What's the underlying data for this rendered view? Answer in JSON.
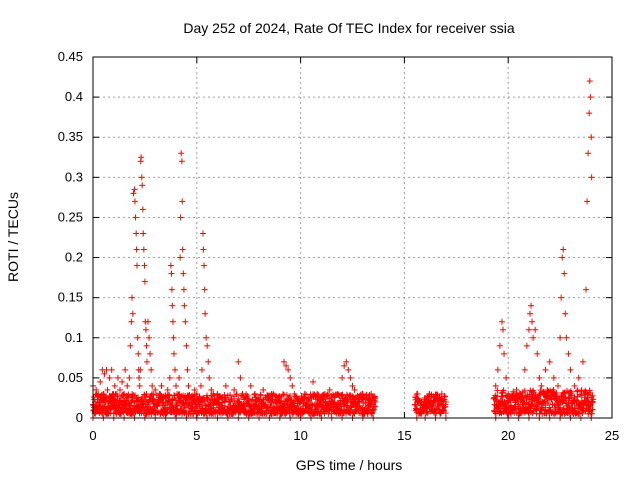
{
  "chart_data": {
    "type": "scatter",
    "title": "Day 252 of 2024, Rate Of TEC Index for receiver ssia",
    "xlabel": "GPS time / hours",
    "ylabel": "ROTI / TECUs",
    "xlim": [
      0,
      25
    ],
    "ylim": [
      0,
      0.45
    ],
    "x_ticks": [
      0,
      5,
      10,
      15,
      20,
      25
    ],
    "y_ticks": [
      0,
      0.05,
      0.1,
      0.15,
      0.2,
      0.25,
      0.3,
      0.35,
      0.4,
      0.45
    ],
    "x_tick_labels": [
      "0",
      "5",
      "10",
      "15",
      "20",
      "25"
    ],
    "y_tick_labels": [
      "0",
      "0.05",
      "0.1",
      "0.15",
      "0.2",
      "0.25",
      "0.3",
      "0.35",
      "0.4",
      "0.45"
    ],
    "grid": true,
    "legend": "none",
    "marker": "plus",
    "color": "#ff0000",
    "series": [
      {
        "points": [
          [
            0.0,
            0.04
          ],
          [
            0.05,
            0.01
          ],
          [
            0.1,
            0.02
          ],
          [
            0.15,
            0.035
          ],
          [
            0.2,
            0.015
          ],
          [
            0.25,
            0.03
          ],
          [
            0.3,
            0.02
          ],
          [
            0.35,
            0.045
          ],
          [
            0.4,
            0.025
          ],
          [
            0.45,
            0.06
          ],
          [
            0.5,
            0.03
          ],
          [
            0.55,
            0.055
          ],
          [
            0.6,
            0.02
          ],
          [
            0.65,
            0.06
          ],
          [
            0.7,
            0.035
          ],
          [
            0.75,
            0.015
          ],
          [
            0.8,
            0.05
          ],
          [
            0.85,
            0.025
          ],
          [
            0.9,
            0.06
          ],
          [
            0.95,
            0.03
          ],
          [
            1.0,
            0.02
          ],
          [
            1.05,
            0.04
          ],
          [
            1.1,
            0.015
          ],
          [
            1.15,
            0.03
          ],
          [
            1.2,
            0.05
          ],
          [
            1.25,
            0.02
          ],
          [
            1.3,
            0.035
          ],
          [
            1.35,
            0.025
          ],
          [
            1.4,
            0.045
          ],
          [
            1.45,
            0.015
          ],
          [
            1.5,
            0.03
          ],
          [
            1.55,
            0.06
          ],
          [
            1.6,
            0.02
          ],
          [
            1.65,
            0.04
          ],
          [
            1.7,
            0.025
          ],
          [
            1.75,
            0.05
          ],
          [
            1.8,
            0.09
          ],
          [
            1.85,
            0.12
          ],
          [
            1.88,
            0.15
          ],
          [
            1.92,
            0.13
          ],
          [
            1.95,
            0.28
          ],
          [
            2.0,
            0.285
          ],
          [
            2.02,
            0.27
          ],
          [
            2.05,
            0.25
          ],
          [
            2.08,
            0.23
          ],
          [
            2.1,
            0.21
          ],
          [
            2.12,
            0.19
          ],
          [
            2.15,
            0.1
          ],
          [
            2.18,
            0.08
          ],
          [
            2.2,
            0.06
          ],
          [
            2.22,
            0.05
          ],
          [
            2.25,
            0.04
          ],
          [
            2.28,
            0.06
          ],
          [
            2.3,
            0.32
          ],
          [
            2.32,
            0.325
          ],
          [
            2.35,
            0.3
          ],
          [
            2.37,
            0.29
          ],
          [
            2.4,
            0.26
          ],
          [
            2.42,
            0.23
          ],
          [
            2.45,
            0.21
          ],
          [
            2.48,
            0.19
          ],
          [
            2.5,
            0.17
          ],
          [
            2.52,
            0.12
          ],
          [
            2.55,
            0.11
          ],
          [
            2.58,
            0.09
          ],
          [
            2.6,
            0.07
          ],
          [
            2.65,
            0.12
          ],
          [
            2.7,
            0.1
          ],
          [
            2.75,
            0.08
          ],
          [
            2.8,
            0.06
          ],
          [
            2.85,
            0.04
          ],
          [
            2.9,
            0.03
          ],
          [
            2.95,
            0.02
          ],
          [
            3.0,
            0.035
          ],
          [
            3.1,
            0.015
          ],
          [
            3.2,
            0.03
          ],
          [
            3.3,
            0.04
          ],
          [
            3.4,
            0.025
          ],
          [
            3.5,
            0.02
          ],
          [
            3.6,
            0.035
          ],
          [
            3.7,
            0.05
          ],
          [
            3.75,
            0.19
          ],
          [
            3.78,
            0.18
          ],
          [
            3.8,
            0.16
          ],
          [
            3.82,
            0.14
          ],
          [
            3.85,
            0.12
          ],
          [
            3.88,
            0.1
          ],
          [
            3.9,
            0.08
          ],
          [
            3.95,
            0.06
          ],
          [
            4.0,
            0.04
          ],
          [
            4.05,
            0.03
          ],
          [
            4.1,
            0.025
          ],
          [
            4.15,
            0.05
          ],
          [
            4.2,
            0.2
          ],
          [
            4.22,
            0.25
          ],
          [
            4.25,
            0.33
          ],
          [
            4.28,
            0.32
          ],
          [
            4.3,
            0.27
          ],
          [
            4.32,
            0.21
          ],
          [
            4.35,
            0.18
          ],
          [
            4.38,
            0.16
          ],
          [
            4.4,
            0.14
          ],
          [
            4.45,
            0.12
          ],
          [
            4.5,
            0.09
          ],
          [
            4.55,
            0.06
          ],
          [
            4.6,
            0.04
          ],
          [
            4.7,
            0.025
          ],
          [
            4.8,
            0.02
          ],
          [
            4.9,
            0.035
          ],
          [
            5.0,
            0.03
          ],
          [
            5.1,
            0.02
          ],
          [
            5.2,
            0.04
          ],
          [
            5.25,
            0.06
          ],
          [
            5.3,
            0.23
          ],
          [
            5.32,
            0.21
          ],
          [
            5.35,
            0.19
          ],
          [
            5.38,
            0.16
          ],
          [
            5.4,
            0.13
          ],
          [
            5.45,
            0.1
          ],
          [
            5.5,
            0.09
          ],
          [
            5.55,
            0.07
          ],
          [
            5.6,
            0.05
          ],
          [
            5.7,
            0.035
          ],
          [
            5.8,
            0.03
          ],
          [
            5.9,
            0.02
          ],
          [
            6.0,
            0.03
          ],
          [
            6.2,
            0.025
          ],
          [
            6.4,
            0.04
          ],
          [
            6.6,
            0.02
          ],
          [
            6.8,
            0.035
          ],
          [
            7.0,
            0.07
          ],
          [
            7.1,
            0.05
          ],
          [
            7.2,
            0.03
          ],
          [
            7.4,
            0.025
          ],
          [
            7.6,
            0.04
          ],
          [
            7.8,
            0.03
          ],
          [
            8.0,
            0.02
          ],
          [
            8.2,
            0.035
          ],
          [
            8.4,
            0.025
          ],
          [
            8.6,
            0.03
          ],
          [
            8.8,
            0.02
          ],
          [
            9.0,
            0.025
          ],
          [
            9.2,
            0.07
          ],
          [
            9.3,
            0.065
          ],
          [
            9.4,
            0.06
          ],
          [
            9.5,
            0.05
          ],
          [
            9.6,
            0.04
          ],
          [
            9.7,
            0.03
          ],
          [
            9.8,
            0.025
          ],
          [
            10.0,
            0.02
          ],
          [
            10.2,
            0.03
          ],
          [
            10.4,
            0.02
          ],
          [
            10.6,
            0.045
          ],
          [
            10.8,
            0.03
          ],
          [
            11.0,
            0.025
          ],
          [
            11.2,
            0.02
          ],
          [
            11.4,
            0.035
          ],
          [
            11.6,
            0.02
          ],
          [
            11.8,
            0.03
          ],
          [
            12.0,
            0.05
          ],
          [
            12.1,
            0.065
          ],
          [
            12.2,
            0.07
          ],
          [
            12.3,
            0.06
          ],
          [
            12.4,
            0.05
          ],
          [
            12.5,
            0.04
          ],
          [
            12.6,
            0.035
          ],
          [
            12.8,
            0.02
          ],
          [
            13.0,
            0.03
          ],
          [
            13.2,
            0.025
          ],
          [
            13.4,
            0.03
          ],
          [
            13.6,
            0.02
          ],
          [
            15.6,
            0.03
          ],
          [
            15.8,
            0.02
          ],
          [
            16.0,
            0.025
          ],
          [
            16.2,
            0.03
          ],
          [
            16.4,
            0.02
          ],
          [
            16.6,
            0.025
          ],
          [
            16.8,
            0.03
          ],
          [
            17.0,
            0.02
          ],
          [
            19.4,
            0.04
          ],
          [
            19.5,
            0.06
          ],
          [
            19.6,
            0.09
          ],
          [
            19.7,
            0.12
          ],
          [
            19.75,
            0.11
          ],
          [
            19.8,
            0.08
          ],
          [
            19.9,
            0.05
          ],
          [
            20.0,
            0.03
          ],
          [
            20.2,
            0.025
          ],
          [
            20.4,
            0.035
          ],
          [
            20.6,
            0.03
          ],
          [
            20.8,
            0.06
          ],
          [
            20.9,
            0.09
          ],
          [
            21.0,
            0.11
          ],
          [
            21.05,
            0.13
          ],
          [
            21.1,
            0.14
          ],
          [
            21.15,
            0.12
          ],
          [
            21.2,
            0.1
          ],
          [
            21.3,
            0.11
          ],
          [
            21.4,
            0.08
          ],
          [
            21.5,
            0.05
          ],
          [
            21.6,
            0.04
          ],
          [
            21.8,
            0.06
          ],
          [
            22.0,
            0.07
          ],
          [
            22.2,
            0.05
          ],
          [
            22.4,
            0.04
          ],
          [
            22.5,
            0.1
          ],
          [
            22.55,
            0.15
          ],
          [
            22.6,
            0.2
          ],
          [
            22.65,
            0.21
          ],
          [
            22.7,
            0.18
          ],
          [
            22.75,
            0.13
          ],
          [
            22.8,
            0.1
          ],
          [
            22.9,
            0.08
          ],
          [
            23.0,
            0.06
          ],
          [
            23.2,
            0.04
          ],
          [
            23.4,
            0.05
          ],
          [
            23.6,
            0.07
          ],
          [
            23.75,
            0.16
          ],
          [
            23.8,
            0.27
          ],
          [
            23.85,
            0.33
          ],
          [
            23.9,
            0.38
          ],
          [
            23.93,
            0.42
          ],
          [
            23.96,
            0.4
          ],
          [
            24.0,
            0.35
          ],
          [
            24.02,
            0.3
          ],
          [
            24.05,
            0.02
          ]
        ]
      }
    ],
    "background_points": [
      [
        0.0,
        0.0
      ],
      [
        0.5,
        0.0
      ],
      [
        1.0,
        0.0
      ],
      [
        1.5,
        0.0
      ],
      [
        2.0,
        0.0
      ],
      [
        2.5,
        0.0
      ],
      [
        3.0,
        0.0
      ],
      [
        3.5,
        0.0
      ],
      [
        4.0,
        0.0
      ],
      [
        4.5,
        0.0
      ],
      [
        5.0,
        0.0
      ],
      [
        5.5,
        0.0
      ],
      [
        6.0,
        0.0
      ],
      [
        6.5,
        0.0
      ],
      [
        7.0,
        0.0
      ],
      [
        7.5,
        0.0
      ],
      [
        8.0,
        0.0
      ],
      [
        8.5,
        0.0
      ],
      [
        9.0,
        0.0
      ],
      [
        9.5,
        0.0
      ],
      [
        10.0,
        0.0
      ],
      [
        10.5,
        0.0
      ],
      [
        11.0,
        0.0
      ],
      [
        11.5,
        0.0
      ],
      [
        12.0,
        0.0
      ],
      [
        12.5,
        0.0
      ],
      [
        13.0,
        0.0
      ],
      [
        13.5,
        0.0
      ],
      [
        15.6,
        0.0
      ],
      [
        16.0,
        0.0
      ],
      [
        16.5,
        0.0
      ],
      [
        17.0,
        0.0
      ],
      [
        19.4,
        0.0
      ],
      [
        20.0,
        0.0
      ],
      [
        20.5,
        0.0
      ],
      [
        21.0,
        0.0
      ],
      [
        21.5,
        0.0
      ],
      [
        22.0,
        0.0
      ],
      [
        22.5,
        0.0
      ],
      [
        23.0,
        0.0
      ],
      [
        23.5,
        0.0
      ],
      [
        24.0,
        0.0
      ]
    ],
    "dense_band_segments": [
      {
        "x_start": 0.0,
        "x_end": 13.6,
        "y_min": 0.005,
        "y_max": 0.03
      },
      {
        "x_start": 15.5,
        "x_end": 17.0,
        "y_min": 0.005,
        "y_max": 0.03
      },
      {
        "x_start": 19.3,
        "x_end": 24.1,
        "y_min": 0.005,
        "y_max": 0.035
      }
    ]
  }
}
